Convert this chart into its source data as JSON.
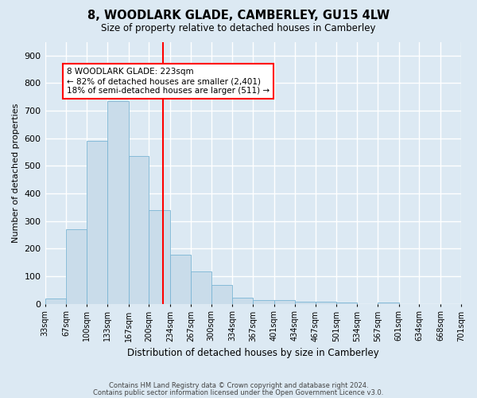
{
  "title": "8, WOODLARK GLADE, CAMBERLEY, GU15 4LW",
  "subtitle": "Size of property relative to detached houses in Camberley",
  "xlabel": "Distribution of detached houses by size in Camberley",
  "ylabel": "Number of detached properties",
  "footer_line1": "Contains HM Land Registry data © Crown copyright and database right 2024.",
  "footer_line2": "Contains public sector information licensed under the Open Government Licence v3.0.",
  "bins": [
    "33sqm",
    "67sqm",
    "100sqm",
    "133sqm",
    "167sqm",
    "200sqm",
    "234sqm",
    "267sqm",
    "300sqm",
    "334sqm",
    "367sqm",
    "401sqm",
    "434sqm",
    "467sqm",
    "501sqm",
    "534sqm",
    "567sqm",
    "601sqm",
    "634sqm",
    "668sqm",
    "701sqm"
  ],
  "bar_heights": [
    20,
    270,
    590,
    735,
    535,
    340,
    178,
    118,
    67,
    22,
    12,
    12,
    8,
    7,
    5,
    0,
    5,
    0,
    0,
    0
  ],
  "bar_color": "#c9dcea",
  "bar_edge_color": "#7ab5d4",
  "vline_x": 223,
  "vline_color": "red",
  "annotation_text": "8 WOODLARK GLADE: 223sqm\n← 82% of detached houses are smaller (2,401)\n18% of semi-detached houses are larger (511) →",
  "annotation_box_color": "white",
  "annotation_box_edge_color": "red",
  "ylim": [
    0,
    950
  ],
  "yticks": [
    0,
    100,
    200,
    300,
    400,
    500,
    600,
    700,
    800,
    900
  ],
  "background_color": "#dce9f3",
  "plot_bg_color": "#dce9f3",
  "grid_color": "white",
  "left_edges": [
    33,
    67,
    100,
    133,
    167,
    200,
    234,
    267,
    300,
    334,
    367,
    401,
    434,
    467,
    501,
    534,
    567,
    601,
    634,
    668
  ],
  "xlim_left": 33,
  "xlim_right": 701
}
